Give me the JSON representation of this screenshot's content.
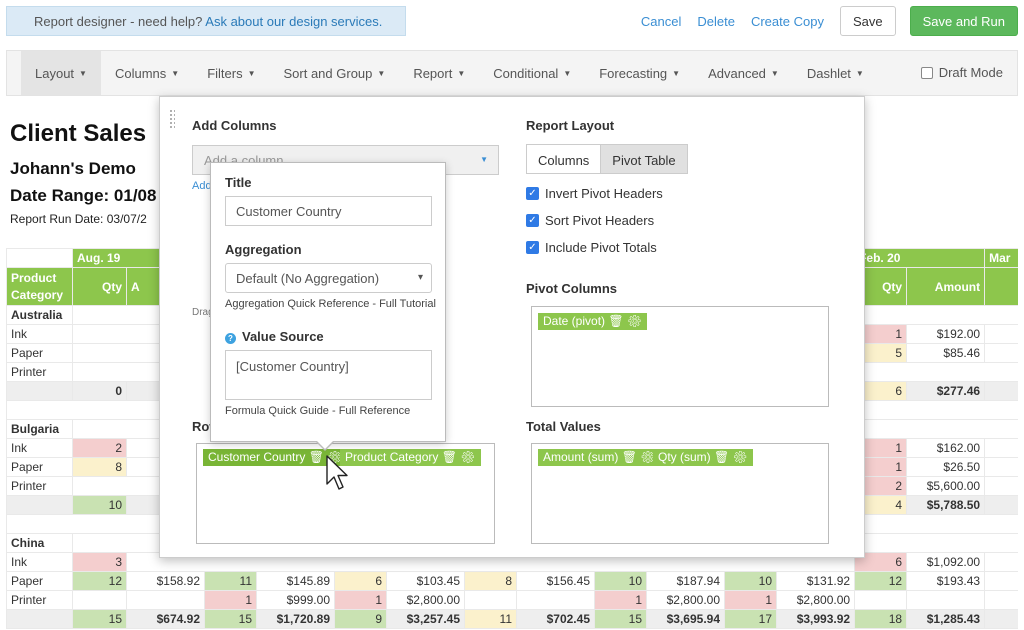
{
  "help_bar": {
    "text": "Report designer - need help?",
    "link": "Ask about our design services."
  },
  "actions": {
    "cancel": "Cancel",
    "delete": "Delete",
    "copy": "Create Copy",
    "save": "Save",
    "save_run": "Save and Run"
  },
  "menu": {
    "items": [
      {
        "label": "Layout"
      },
      {
        "label": "Columns"
      },
      {
        "label": "Filters"
      },
      {
        "label": "Sort and Group"
      },
      {
        "label": "Report"
      },
      {
        "label": "Conditional"
      },
      {
        "label": "Forecasting"
      },
      {
        "label": "Advanced"
      },
      {
        "label": "Dashlet"
      }
    ],
    "draft_mode": "Draft Mode"
  },
  "report": {
    "title": "Client Sales",
    "subtitle": "Johann's Demo",
    "date_range": "Date Range: 01/08",
    "run_date": "Report Run Date: 03/07/2",
    "months": {
      "aug": "Aug. 19",
      "feb": "Feb. 20",
      "mar": "Mar"
    },
    "headers": {
      "category": "Product Category",
      "qty": "Qty",
      "amount": "Amount",
      "a": "A"
    },
    "countries": {
      "australia": "Australia",
      "bulgaria": "Bulgaria",
      "china": "China"
    },
    "labels": {
      "ink": "Ink",
      "paper": "Paper",
      "printer": "Printer"
    },
    "australia": {
      "ink": {
        "r_qty": "1",
        "r_amt": "$192.00"
      },
      "paper": {
        "r_qty": "5",
        "r_amt": "$85.46"
      },
      "total": {
        "l_qty": "0",
        "r_qty": "6",
        "r_amt": "$277.46"
      }
    },
    "bulgaria": {
      "ink": {
        "l_qty": "2",
        "r_qty": "1",
        "r_amt": "$162.00"
      },
      "paper": {
        "l_qty": "8",
        "r_qty": "1",
        "r_amt": "$26.50"
      },
      "printer": {
        "r_qty": "2",
        "r_amt": "$5,600.00"
      },
      "total": {
        "l_qty": "10",
        "r_qty": "4",
        "r_amt": "$5,788.50"
      }
    },
    "china": {
      "ink": {
        "l_qty": "3",
        "r_qty": "6",
        "r_amt": "$1,092.00"
      },
      "paper": [
        "12",
        "$158.92",
        "11",
        "$145.89",
        "6",
        "$103.45",
        "8",
        "$156.45",
        "10",
        "$187.94",
        "10",
        "$131.92",
        "12",
        "$193.43"
      ],
      "printer": [
        "",
        "",
        "1",
        "$999.00",
        "1",
        "$2,800.00",
        "",
        "",
        "1",
        "$2,800.00",
        "1",
        "$2,800.00",
        "",
        ""
      ],
      "total": [
        "15",
        "$674.92",
        "15",
        "$1,720.89",
        "9",
        "$3,257.45",
        "11",
        "$702.45",
        "15",
        "$3,695.94",
        "17",
        "$3,993.92",
        "18",
        "$1,285.43"
      ]
    }
  },
  "designer": {
    "add_columns": "Add Columns",
    "add_placeholder": "Add a column...",
    "add_link": "Add",
    "drag_text": "Drag",
    "report_layout": "Report Layout",
    "layout_columns": "Columns",
    "layout_pivot": "Pivot Table",
    "invert": "Invert Pivot Headers",
    "sort": "Sort Pivot Headers",
    "totals": "Include Pivot Totals",
    "pivot_columns": "Pivot Columns",
    "pivot_tag": "Date (pivot)",
    "rows_label": "Row",
    "row_tags": {
      "country": "Customer Country",
      "category": "Product Category"
    },
    "total_values": "Total Values",
    "value_tags": {
      "amount": "Amount (sum)",
      "qty": "Qty (sum)"
    }
  },
  "editor": {
    "title_label": "Title",
    "title_value": "Customer Country",
    "agg_label": "Aggregation",
    "agg_value": "Default (No Aggregation)",
    "agg_ref": "Aggregation Quick Reference - Full Tutorial",
    "source_label": "Value Source",
    "source_value": "[Customer Country]",
    "formula_ref": "Formula Quick Guide - Full Reference"
  }
}
